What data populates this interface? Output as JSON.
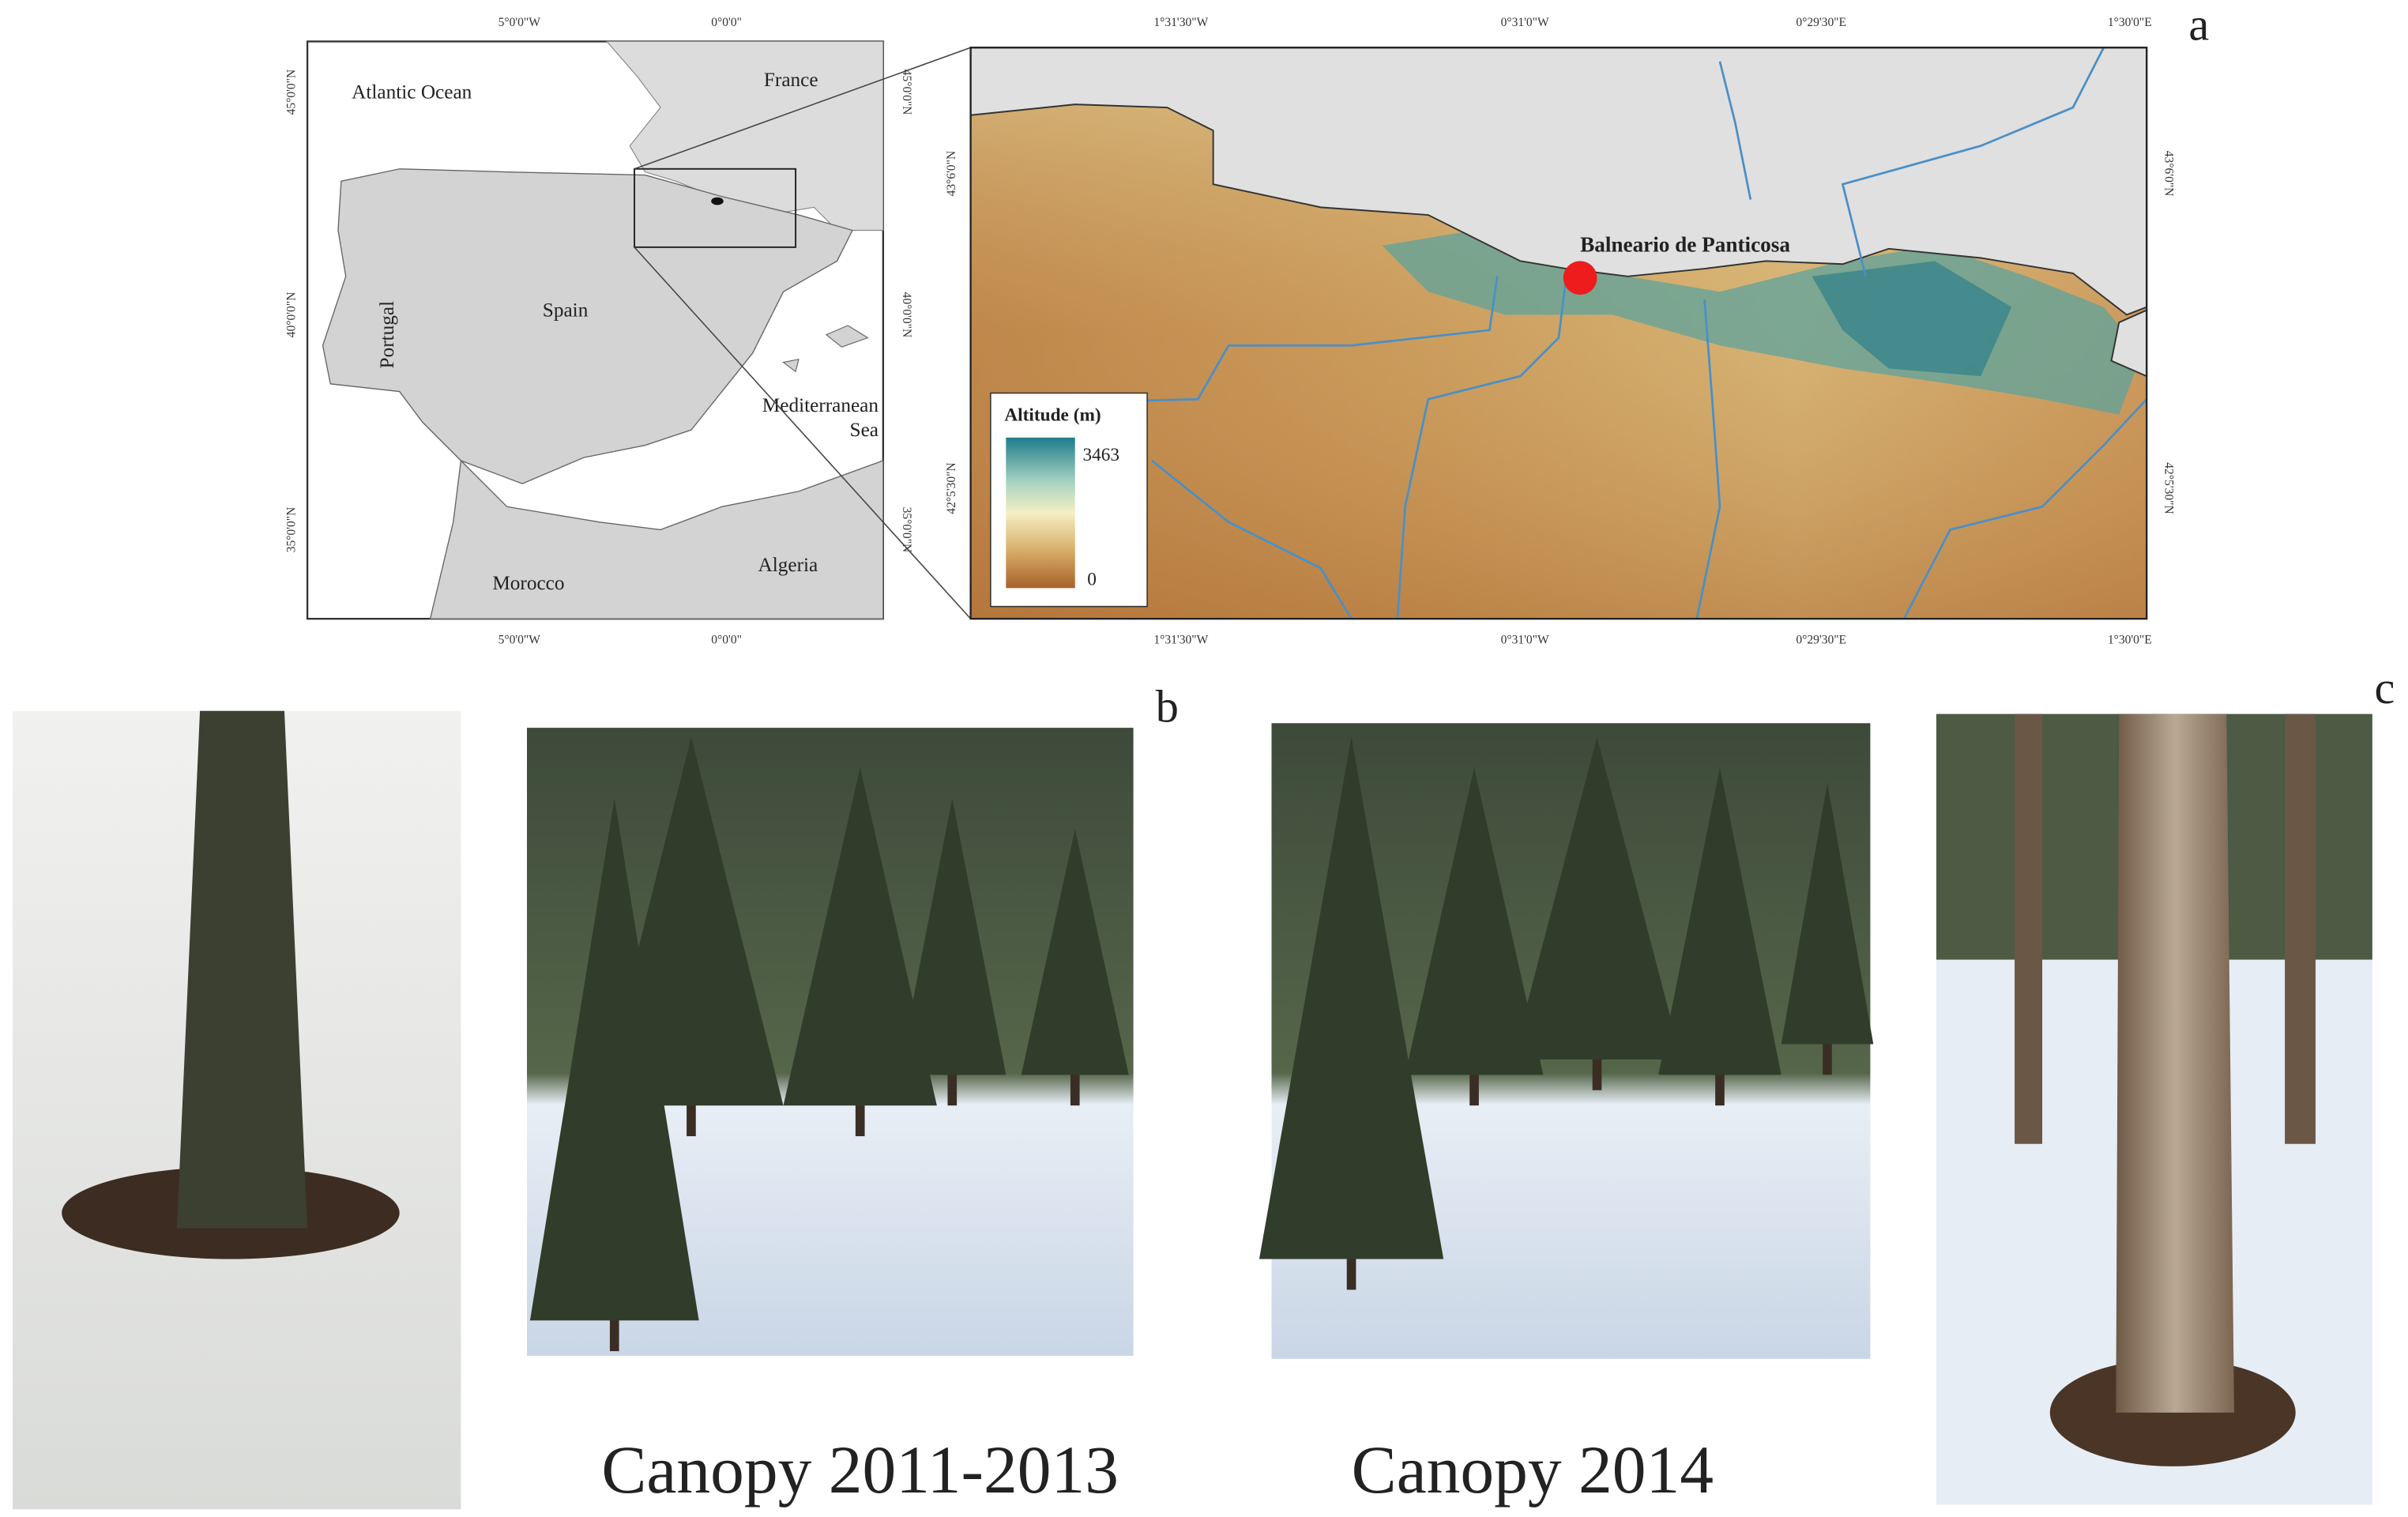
{
  "panel_labels": [
    "a",
    "b",
    "c"
  ],
  "inset_map": {
    "x_ticks_top": [
      "5°0'0\"W",
      "0°0'0\""
    ],
    "x_ticks_bottom": [
      "5°0'0\"W",
      "0°0'0\""
    ],
    "y_ticks_left": [
      "45°0'0\"N",
      "40°0'0\"N",
      "35°0'0\"N"
    ],
    "y_ticks_right": [
      "45°0'0\"N",
      "40°0'0\"N",
      "35°0'0\"N"
    ],
    "labels": {
      "atlantic": "Atlantic Ocean",
      "france": "France",
      "spain": "Spain",
      "portugal": "Portugal",
      "mediterranean_line1": "Mediterranean",
      "mediterranean_line2": "Sea",
      "morocco": "Morocco",
      "algeria": "Algeria"
    }
  },
  "main_map": {
    "x_ticks_top": [
      "1°31'30\"W",
      "0°31'0\"W",
      "0°29'30\"E",
      "1°30'0\"E"
    ],
    "x_ticks_bottom": [
      "1°31'30\"W",
      "0°31'0\"W",
      "0°29'30\"E",
      "1°30'0\"E"
    ],
    "y_ticks_left": [
      "43°6'0\"N",
      "42°5'30\"N"
    ],
    "y_ticks_right": [
      "43°6'0\"N",
      "42°5'30\"N"
    ],
    "site_label": "Balneario de Panticosa",
    "legend": {
      "title": "Altitude (m)",
      "max": 3463,
      "min": 0
    }
  },
  "captions": [
    "Canopy 2011-2013",
    "Canopy 2014"
  ]
}
